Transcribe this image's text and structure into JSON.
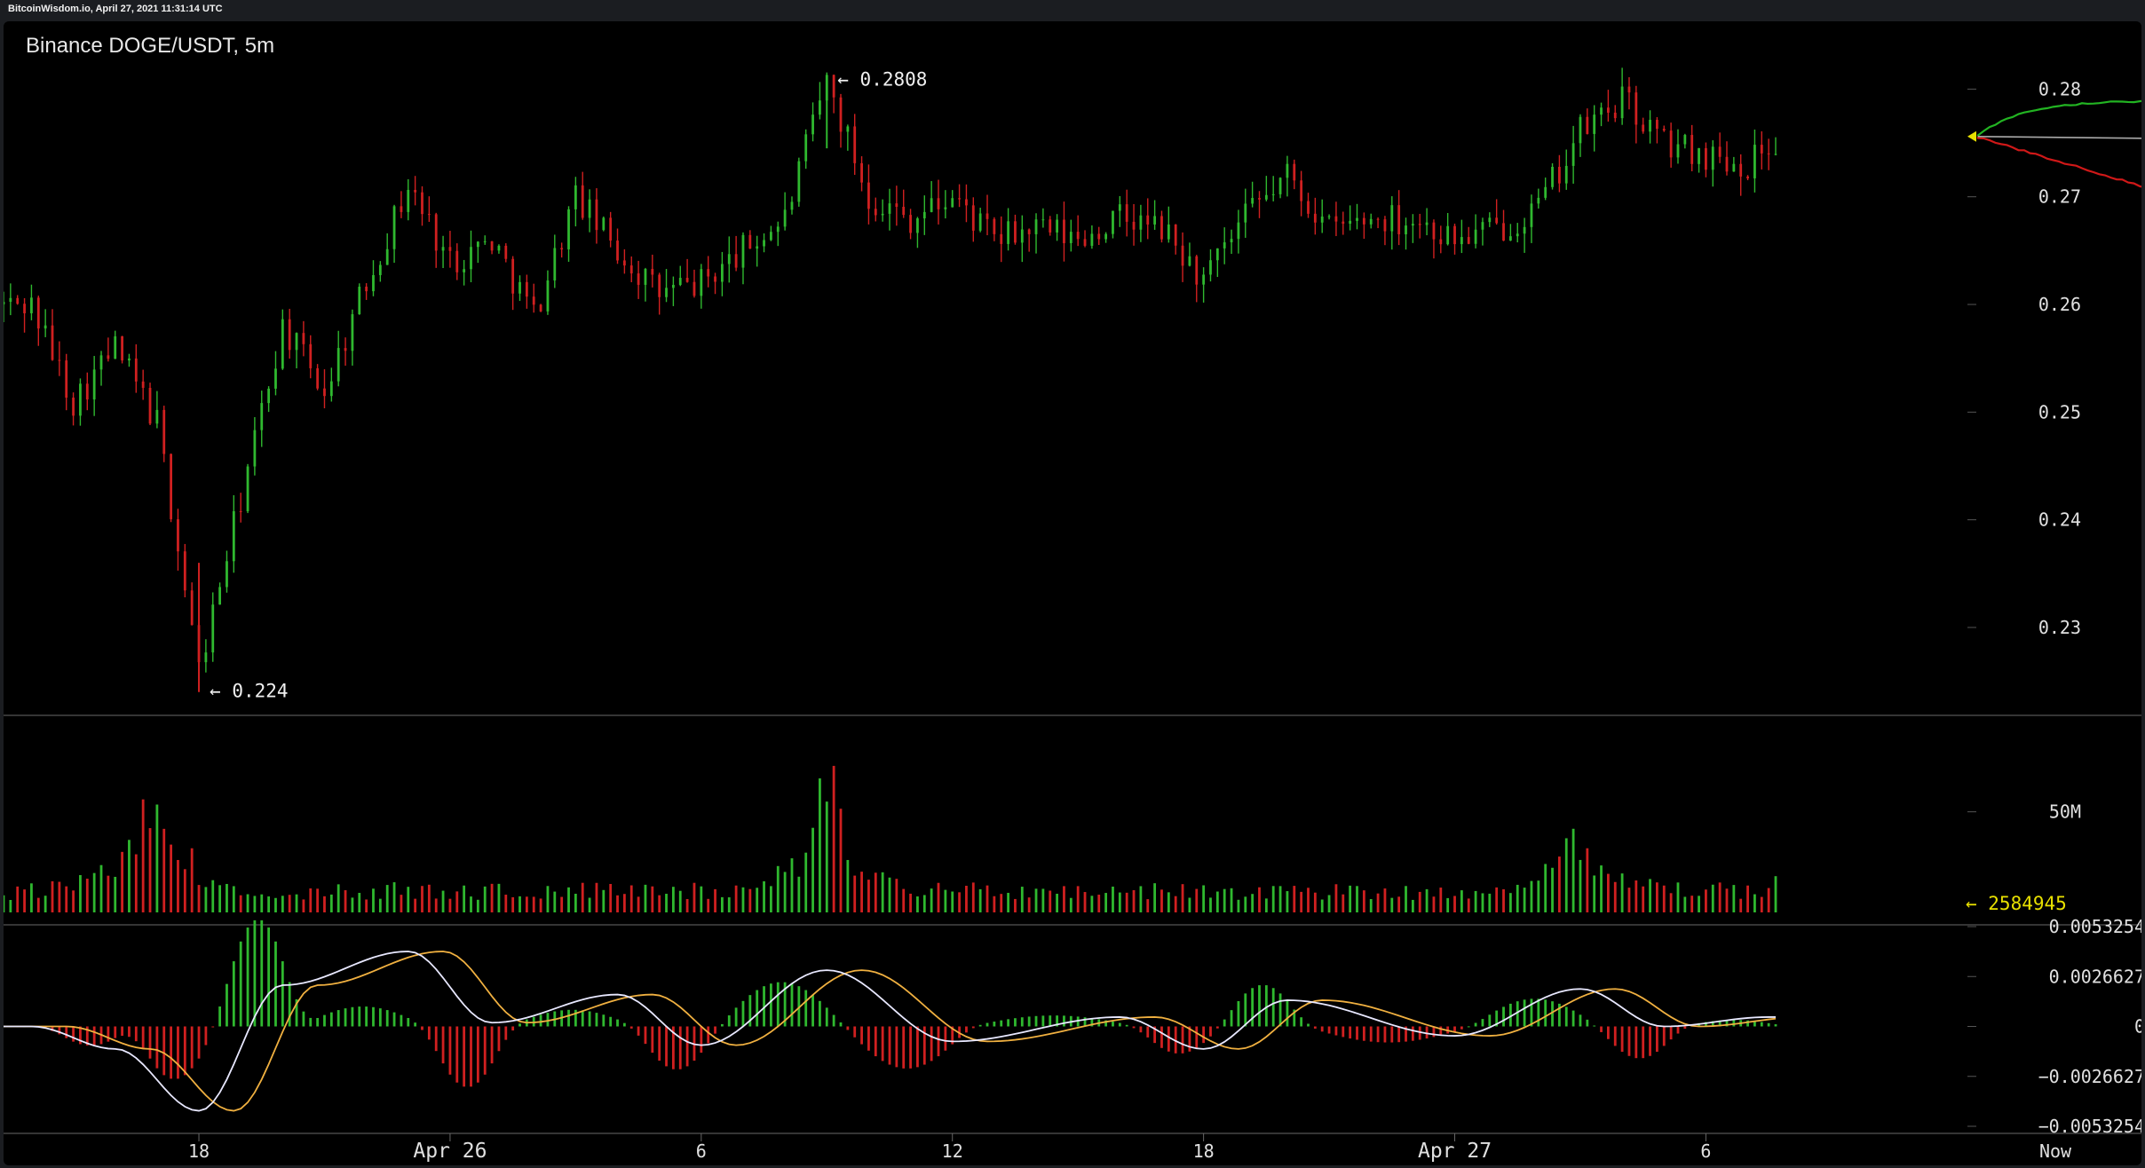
{
  "window": {
    "site_bar_text": "BitcoinWisdom.io, April 27, 2021 11:31:14 UTC"
  },
  "chart": {
    "title": "Binance DOGE/USDT, 5m",
    "high_label": "← 0.2808",
    "low_label": "← 0.224",
    "volume_last_label": "← 2584945",
    "price_axis_ticks": [
      "0.28",
      "0.27",
      "0.26",
      "0.25",
      "0.24",
      "0.23"
    ],
    "volume_axis_ticks": [
      "50M"
    ],
    "macd_axis_ticks": [
      "0.0053254",
      "0.0026627",
      "0",
      "−0.0026627",
      "−0.0053254"
    ],
    "time_axis_ticks": [
      "18",
      "Apr 26",
      "6",
      "12",
      "18",
      "Apr 27",
      "6",
      "Now"
    ]
  },
  "chart_data": [
    {
      "type": "candlestick",
      "title": "Binance DOGE/USDT, 5m",
      "xlabel": "",
      "ylabel": "",
      "ylim": [
        0.222,
        0.283
      ],
      "x_ticks": [
        "18",
        "Apr 26",
        "6",
        "12",
        "18",
        "Apr 27",
        "6"
      ],
      "y_ticks": [
        0.28,
        0.27,
        0.26,
        0.25,
        0.24,
        0.23
      ],
      "annotations": [
        {
          "label": "0.2808",
          "kind": "high"
        },
        {
          "label": "0.224",
          "kind": "low"
        }
      ],
      "close_path": [
        {
          "t": "Apr 25 14:00",
          "v": 0.26
        },
        {
          "t": "Apr 25 15:00",
          "v": 0.251
        },
        {
          "t": "Apr 25 16:00",
          "v": 0.256
        },
        {
          "t": "Apr 25 17:00",
          "v": 0.249
        },
        {
          "t": "Apr 25 18:00",
          "v": 0.226
        },
        {
          "t": "Apr 25 19:00",
          "v": 0.242
        },
        {
          "t": "Apr 25 20:00",
          "v": 0.258
        },
        {
          "t": "Apr 25 21:00",
          "v": 0.252
        },
        {
          "t": "Apr 25 22:00",
          "v": 0.262
        },
        {
          "t": "Apr 25 23:00",
          "v": 0.271
        },
        {
          "t": "Apr 26 00:00",
          "v": 0.264
        },
        {
          "t": "Apr 26 01:00",
          "v": 0.266
        },
        {
          "t": "Apr 26 02:00",
          "v": 0.259
        },
        {
          "t": "Apr 26 03:00",
          "v": 0.27
        },
        {
          "t": "Apr 26 04:00",
          "v": 0.265
        },
        {
          "t": "Apr 26 05:00",
          "v": 0.261
        },
        {
          "t": "Apr 26 06:00",
          "v": 0.262
        },
        {
          "t": "Apr 26 07:00",
          "v": 0.265
        },
        {
          "t": "Apr 26 08:00",
          "v": 0.268
        },
        {
          "t": "Apr 26 09:00",
          "v": 0.2808
        },
        {
          "t": "Apr 26 10:00",
          "v": 0.27
        },
        {
          "t": "Apr 26 11:00",
          "v": 0.268
        },
        {
          "t": "Apr 26 12:00",
          "v": 0.27
        },
        {
          "t": "Apr 26 13:00",
          "v": 0.266
        },
        {
          "t": "Apr 26 14:00",
          "v": 0.267
        },
        {
          "t": "Apr 26 15:00",
          "v": 0.266
        },
        {
          "t": "Apr 26 16:00",
          "v": 0.268
        },
        {
          "t": "Apr 26 17:00",
          "v": 0.267
        },
        {
          "t": "Apr 26 18:00",
          "v": 0.262
        },
        {
          "t": "Apr 26 19:00",
          "v": 0.268
        },
        {
          "t": "Apr 26 20:00",
          "v": 0.272
        },
        {
          "t": "Apr 26 21:00",
          "v": 0.267
        },
        {
          "t": "Apr 26 22:00",
          "v": 0.268
        },
        {
          "t": "Apr 26 23:00",
          "v": 0.268
        },
        {
          "t": "Apr 27 00:00",
          "v": 0.266
        },
        {
          "t": "Apr 27 01:00",
          "v": 0.267
        },
        {
          "t": "Apr 27 02:00",
          "v": 0.269
        },
        {
          "t": "Apr 27 03:00",
          "v": 0.276
        },
        {
          "t": "Apr 27 04:00",
          "v": 0.279
        },
        {
          "t": "Apr 27 05:00",
          "v": 0.275
        },
        {
          "t": "Apr 27 06:00",
          "v": 0.274
        },
        {
          "t": "Apr 27 07:00",
          "v": 0.273
        },
        {
          "t": "Apr 27 07:30",
          "v": 0.275
        }
      ],
      "last_price": 0.2756,
      "depth_series": [
        {
          "name": "bids",
          "color": "#22b422"
        },
        {
          "name": "asks",
          "color": "#d01818"
        }
      ]
    },
    {
      "type": "bar",
      "title": "",
      "y_ticks": [
        "50M"
      ],
      "last_value": 2584945,
      "peaks": [
        {
          "t": "Apr 25 17:00",
          "v": 72000000
        },
        {
          "t": "Apr 26 09:00",
          "v": 68000000
        },
        {
          "t": "Apr 27 03:00",
          "v": 40000000
        }
      ]
    },
    {
      "type": "line",
      "title": "",
      "ylim": [
        -0.0053254,
        0.0053254
      ],
      "y_ticks": [
        0.0053254,
        0.0026627,
        0,
        -0.0026627,
        -0.0053254
      ],
      "series": [],
      "path": [
        {
          "t": "Apr 25 14:00",
          "v": 0.0
        },
        {
          "t": "Apr 25 16:00",
          "v": -0.0012
        },
        {
          "t": "Apr 25 18:00",
          "v": -0.0045
        },
        {
          "t": "Apr 25 20:00",
          "v": 0.0022
        },
        {
          "t": "Apr 25 23:00",
          "v": 0.004
        },
        {
          "t": "Apr 26 01:00",
          "v": 0.0002
        },
        {
          "t": "Apr 26 04:00",
          "v": 0.0017
        },
        {
          "t": "Apr 26 06:00",
          "v": -0.001
        },
        {
          "t": "Apr 26 09:00",
          "v": 0.003
        },
        {
          "t": "Apr 26 12:00",
          "v": -0.0008
        },
        {
          "t": "Apr 26 16:00",
          "v": 0.0005
        },
        {
          "t": "Apr 26 18:00",
          "v": -0.0012
        },
        {
          "t": "Apr 26 20:00",
          "v": 0.0014
        },
        {
          "t": "Apr 27 00:00",
          "v": -0.0005
        },
        {
          "t": "Apr 27 03:00",
          "v": 0.002
        },
        {
          "t": "Apr 27 05:00",
          "v": 0.0
        },
        {
          "t": "Apr 27 07:30",
          "v": 0.0005
        }
      ]
    }
  ],
  "colors": {
    "up": "#2fb82f",
    "down": "#d02020",
    "macd_line": "#e8e8ff",
    "signal_line": "#f0b040",
    "last_marker": "#e8e000",
    "axis_text": "#e0e0e0"
  }
}
